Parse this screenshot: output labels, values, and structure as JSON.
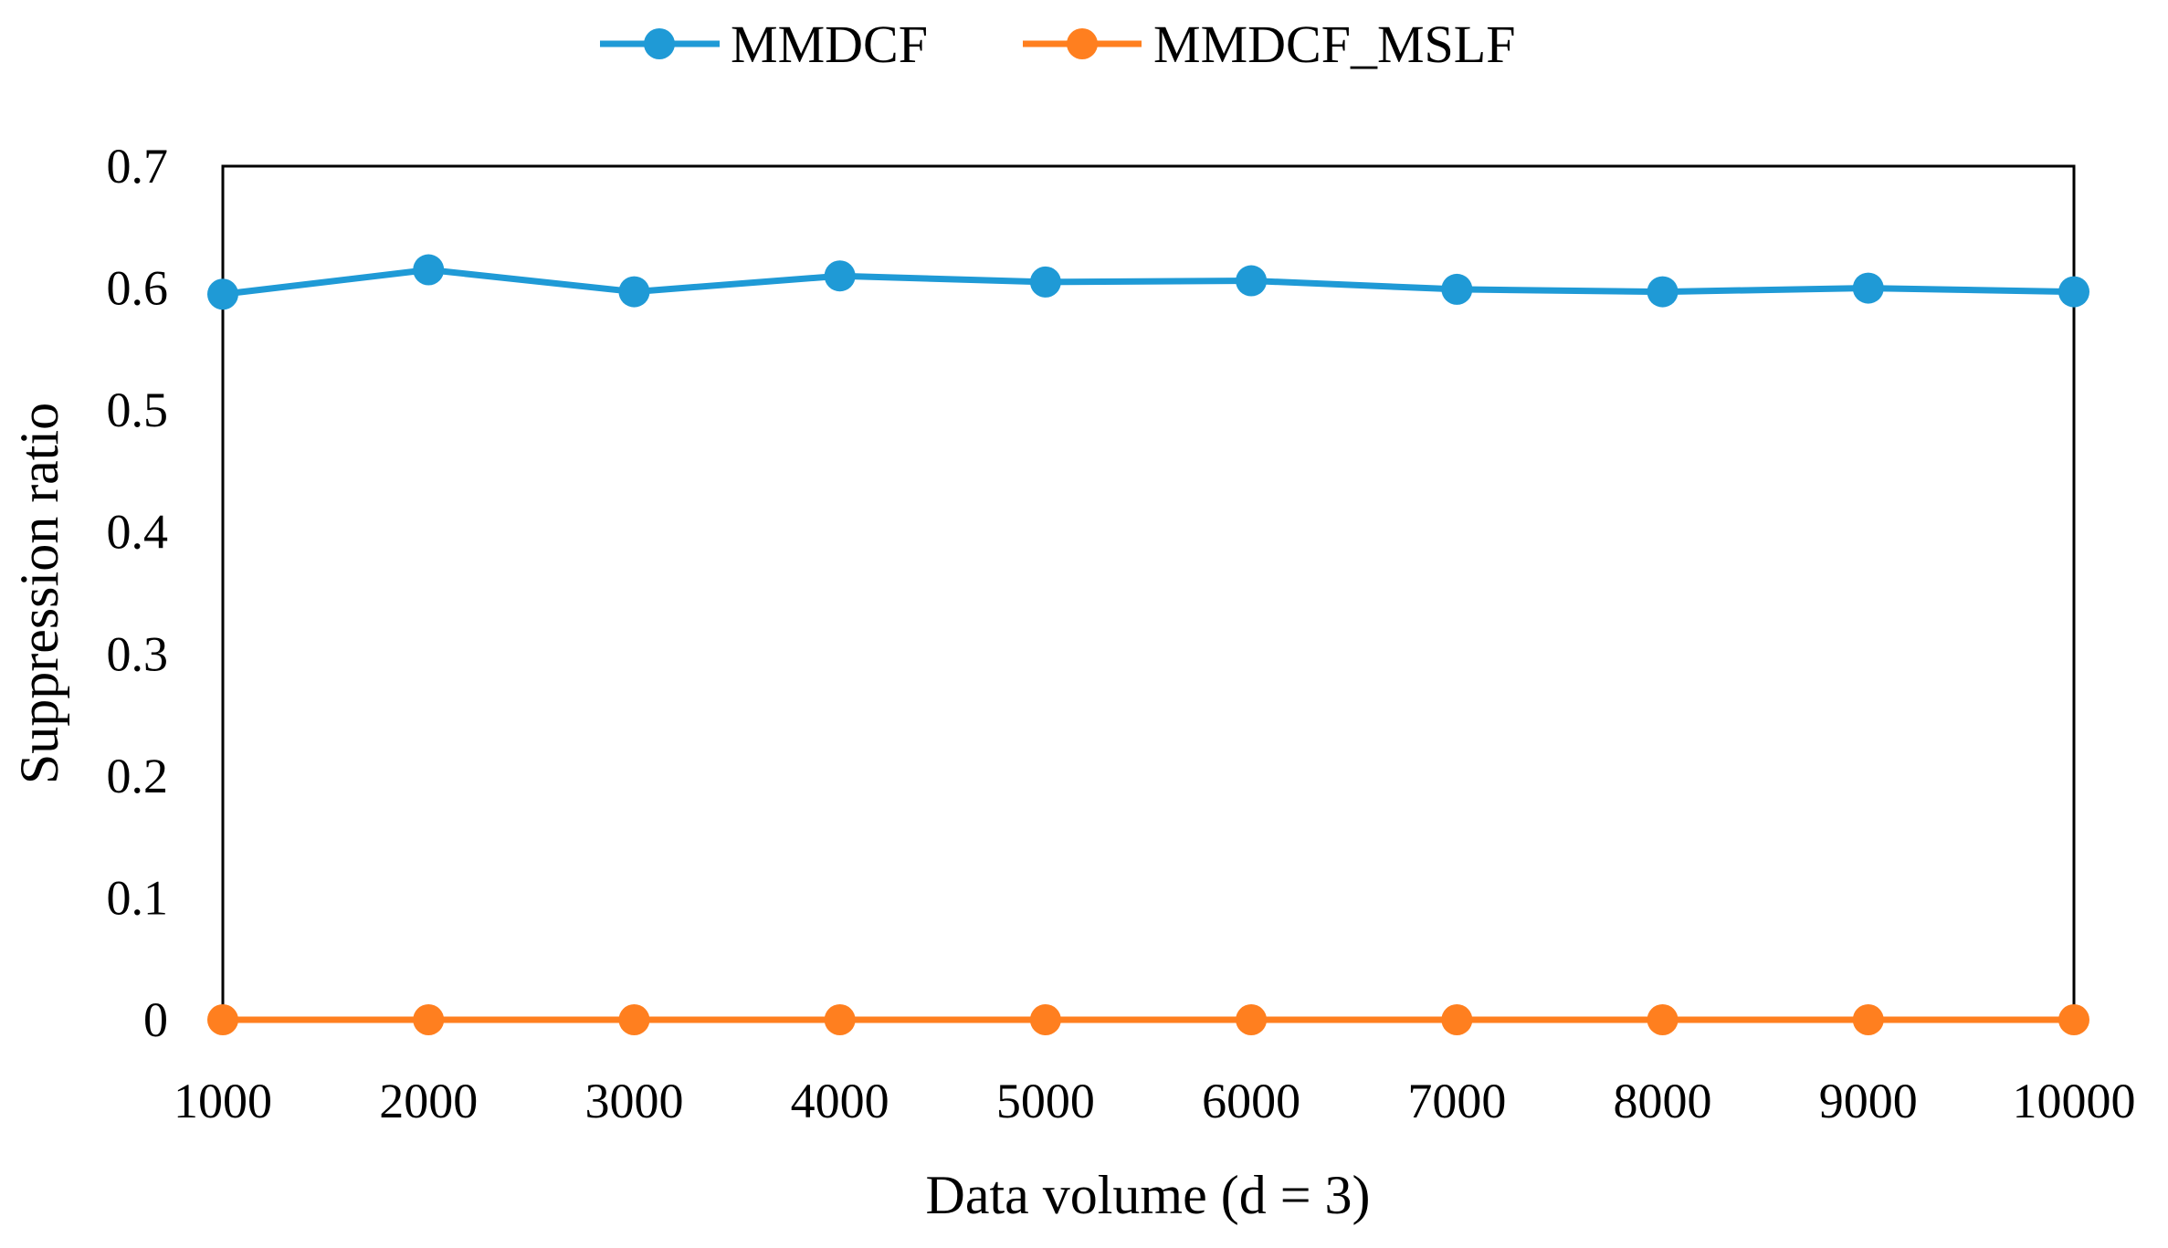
{
  "chart_data": {
    "type": "line",
    "title": "",
    "xlabel": "Data volume (d = 3)",
    "ylabel": "Suppression ratio",
    "categories": [
      "1000",
      "2000",
      "3000",
      "4000",
      "5000",
      "6000",
      "7000",
      "8000",
      "9000",
      "10000"
    ],
    "yticks": [
      "0",
      "0.1",
      "0.2",
      "0.3",
      "0.4",
      "0.5",
      "0.6",
      "0.7"
    ],
    "ylim": [
      0,
      0.7
    ],
    "grid": false,
    "legend_position": "top-center",
    "series": [
      {
        "name": "MMDCF",
        "color": "#1f9ad6",
        "values": [
          0.595,
          0.615,
          0.597,
          0.61,
          0.605,
          0.606,
          0.599,
          0.597,
          0.6,
          0.597
        ]
      },
      {
        "name": "MMDCF_MSLF",
        "color": "#ff7f1f",
        "values": [
          0,
          0,
          0,
          0,
          0,
          0,
          0,
          0,
          0,
          0
        ]
      }
    ]
  }
}
